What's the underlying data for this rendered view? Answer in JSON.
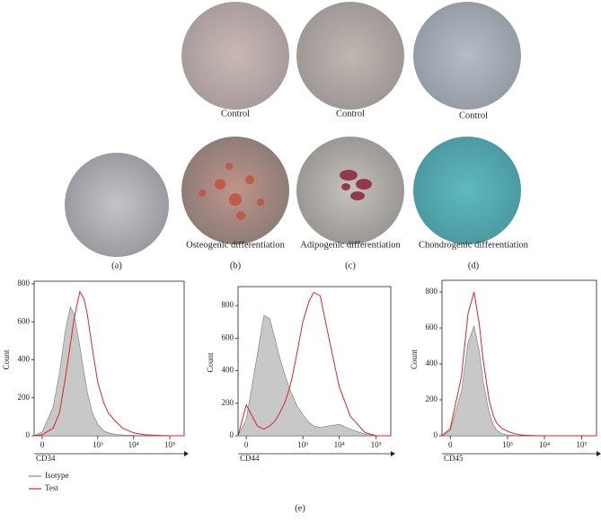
{
  "panels": [
    {
      "letter": "(a)"
    },
    {
      "letter": "(b)",
      "control": "Control",
      "treated": "Osteogenic differentiation"
    },
    {
      "letter": "(c)",
      "control": "Control",
      "treated": "Adipogenic differentiation"
    },
    {
      "letter": "(d)",
      "control": "Control",
      "treated": "Chondrogenic differentiation"
    }
  ],
  "caption": "(e)",
  "chart_data": [
    {
      "type": "line",
      "xscale": "biexponential",
      "xlabel": "CD34",
      "ylabel": "Count",
      "legend": true,
      "x": [
        -20,
        0,
        30,
        60,
        100,
        150,
        200,
        300,
        400,
        500,
        700,
        1000,
        1500,
        2000,
        3000,
        5000,
        10000,
        20000,
        50000,
        100000,
        250000
      ],
      "series": [
        {
          "name": "Isotype",
          "color": "#c8c8c8",
          "fill": true,
          "values": [
            0,
            20,
            150,
            330,
            550,
            680,
            640,
            470,
            330,
            230,
            120,
            60,
            25,
            15,
            8,
            4,
            2,
            1,
            0,
            0,
            0
          ]
        },
        {
          "name": "Test",
          "color": "#d62728",
          "fill": false,
          "values": [
            0,
            5,
            40,
            120,
            300,
            480,
            620,
            760,
            720,
            640,
            460,
            280,
            170,
            120,
            80,
            40,
            15,
            5,
            2,
            0,
            0
          ]
        }
      ],
      "xlim": [
        -20,
        250000
      ],
      "xticks": [
        0,
        {
          "value": 1000,
          "label": "10³"
        },
        {
          "value": 10000,
          "label": "10⁴"
        },
        {
          "value": 100000,
          "label": "10⁵"
        }
      ],
      "ylim": [
        0,
        800
      ],
      "yticks": [
        0,
        200,
        400,
        600,
        800
      ]
    },
    {
      "type": "line",
      "xscale": "biexponential",
      "xlabel": "CD44",
      "ylabel": "Count",
      "legend": false,
      "x": [
        -20,
        0,
        30,
        60,
        100,
        150,
        200,
        300,
        400,
        500,
        700,
        1000,
        1500,
        2000,
        3000,
        5000,
        10000,
        20000,
        50000,
        100000,
        250000
      ],
      "series": [
        {
          "name": "Isotype",
          "color": "#c8c8c8",
          "fill": true,
          "values": [
            0,
            100,
            500,
            740,
            720,
            600,
            500,
            380,
            300,
            250,
            180,
            130,
            80,
            60,
            50,
            60,
            70,
            40,
            10,
            0,
            0
          ]
        },
        {
          "name": "Test",
          "color": "#d62728",
          "fill": false,
          "values": [
            0,
            190,
            60,
            40,
            60,
            90,
            130,
            200,
            280,
            360,
            520,
            700,
            830,
            880,
            860,
            620,
            300,
            120,
            20,
            0,
            0
          ]
        }
      ],
      "xlim": [
        -20,
        250000
      ],
      "xticks": [
        0,
        {
          "value": 1000,
          "label": "10³"
        },
        {
          "value": 10000,
          "label": "10⁴"
        },
        {
          "value": 100000,
          "label": "10⁵"
        }
      ],
      "ylim": [
        0,
        900
      ],
      "yticks": [
        0,
        200,
        400,
        600,
        800
      ]
    },
    {
      "type": "line",
      "xscale": "biexponential",
      "xlabel": "CD45",
      "ylabel": "Count",
      "legend": false,
      "x": [
        -20,
        0,
        30,
        60,
        100,
        150,
        200,
        300,
        400,
        500,
        700,
        1000,
        1500,
        2000,
        3000,
        5000,
        10000,
        20000,
        50000,
        100000,
        250000
      ],
      "series": [
        {
          "name": "Isotype",
          "color": "#c8c8c8",
          "fill": true,
          "values": [
            0,
            30,
            250,
            520,
            610,
            470,
            300,
            130,
            60,
            30,
            12,
            5,
            2,
            0,
            0,
            0,
            0,
            0,
            0,
            0,
            0
          ]
        },
        {
          "name": "Test",
          "color": "#d62728",
          "fill": false,
          "values": [
            0,
            40,
            330,
            680,
            800,
            620,
            420,
            200,
            110,
            70,
            40,
            25,
            12,
            6,
            3,
            1,
            0,
            0,
            0,
            0,
            0
          ]
        }
      ],
      "xlim": [
        -20,
        250000
      ],
      "xticks": [
        0,
        {
          "value": 1000,
          "label": "10³"
        },
        {
          "value": 10000,
          "label": "10⁴"
        },
        {
          "value": 100000,
          "label": "10⁵"
        }
      ],
      "ylim": [
        0,
        850
      ],
      "yticks": [
        0,
        200,
        400,
        600,
        800
      ]
    }
  ]
}
